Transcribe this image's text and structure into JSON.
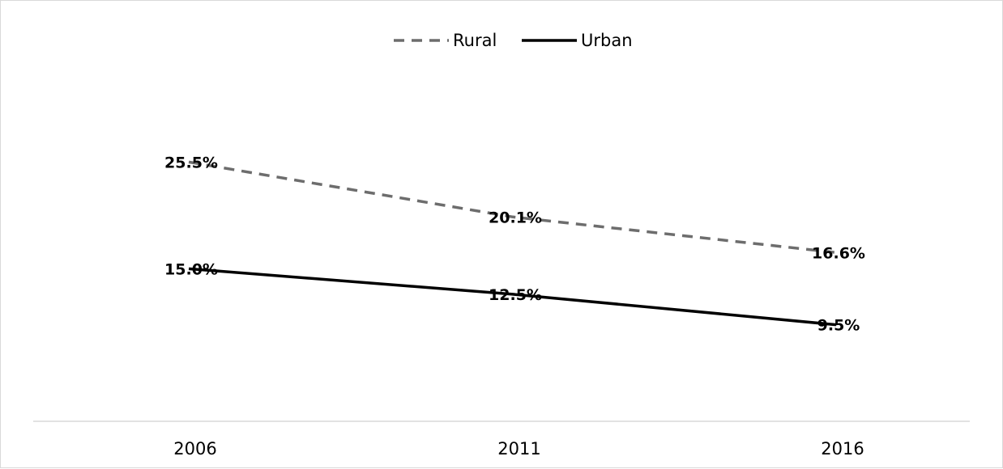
{
  "chart_data": {
    "type": "line",
    "categories": [
      "2006",
      "2011",
      "2016"
    ],
    "series": [
      {
        "name": "Rural",
        "values": [
          25.5,
          20.1,
          16.6
        ],
        "labels": [
          "25.5%",
          "20.1%",
          "16.6%"
        ],
        "color": "#6d6d6d",
        "dash": "dashed"
      },
      {
        "name": "Urban",
        "values": [
          15.0,
          12.5,
          9.5
        ],
        "labels": [
          "15.0%",
          "12.5%",
          "9.5%"
        ],
        "color": "#000000",
        "dash": "solid"
      }
    ],
    "title": "",
    "xlabel": "",
    "ylabel": "",
    "ylim": [
      0,
      35
    ],
    "grid": false,
    "y_axis_visible": false,
    "legend_position": "top-center",
    "value_unit": "%"
  }
}
